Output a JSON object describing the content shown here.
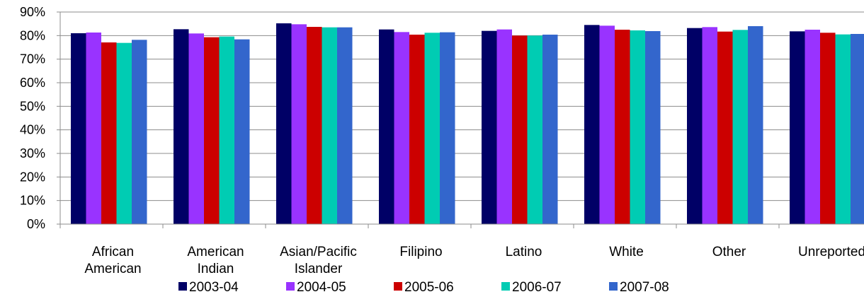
{
  "chart_data": {
    "type": "bar",
    "title": "",
    "xlabel": "",
    "ylabel": "",
    "ylim": [
      0,
      90
    ],
    "y_ticks": [
      0,
      10,
      20,
      30,
      40,
      50,
      60,
      70,
      80,
      90
    ],
    "y_tick_labels": [
      "0%",
      "10%",
      "20%",
      "30%",
      "40%",
      "50%",
      "60%",
      "70%",
      "80%",
      "90%"
    ],
    "grid": true,
    "legend_position": "bottom",
    "categories": [
      [
        "African",
        "American"
      ],
      [
        "American",
        "Indian"
      ],
      [
        "Asian/Pacific",
        "Islander"
      ],
      [
        "Filipino"
      ],
      [
        "Latino"
      ],
      [
        "White"
      ],
      [
        "Other"
      ],
      [
        "Unreported"
      ]
    ],
    "series": [
      {
        "name": "2003-04",
        "color": "#000066",
        "values": [
          81.0,
          82.7,
          85.2,
          82.6,
          82.0,
          84.5,
          83.2,
          81.8
        ]
      },
      {
        "name": "2004-05",
        "color": "#9933FF",
        "values": [
          81.3,
          80.9,
          84.8,
          81.5,
          82.6,
          84.2,
          83.6,
          82.5
        ]
      },
      {
        "name": "2005-06",
        "color": "#CC0000",
        "values": [
          77.1,
          79.3,
          83.7,
          80.4,
          80.0,
          82.5,
          81.7,
          81.2
        ]
      },
      {
        "name": "2006-07",
        "color": "#00CCB3",
        "values": [
          76.9,
          79.6,
          83.5,
          81.2,
          80.0,
          82.2,
          82.4,
          80.5
        ]
      },
      {
        "name": "2007-08",
        "color": "#3366CC",
        "values": [
          78.2,
          78.4,
          83.5,
          81.4,
          80.4,
          81.9,
          84.0,
          80.7
        ]
      }
    ]
  }
}
